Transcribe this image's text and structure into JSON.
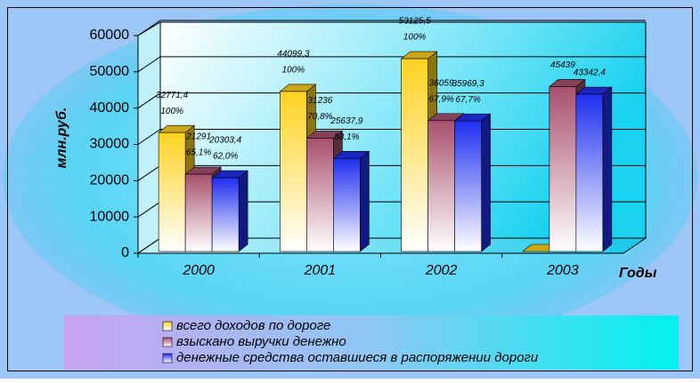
{
  "chart_data": {
    "type": "bar3d",
    "ylabel": "млн.руб.",
    "xlabel": "Годы",
    "categories": [
      "2000",
      "2001",
      "2002",
      "2003"
    ],
    "ylim": [
      0,
      60000
    ],
    "yticks": [
      0,
      10000,
      20000,
      30000,
      40000,
      50000,
      60000
    ],
    "grid": true,
    "series": [
      {
        "name": "всего доходов по дороге",
        "color": "#ffd21f",
        "values": [
          32771.4,
          44099.3,
          53125.5,
          0
        ],
        "value_labels": [
          "32771,4",
          "44099,3",
          "53125,5",
          null
        ],
        "share_labels": [
          "100%",
          "100%",
          "100%",
          null
        ]
      },
      {
        "name": "взыскано выручки денежно",
        "color": "#a8506e",
        "values": [
          21291,
          31236,
          36059,
          45439
        ],
        "value_labels": [
          "21291",
          "31236",
          "36059",
          "45439"
        ],
        "share_labels": [
          "65,1%",
          "70,8%",
          "67,9%",
          null
        ]
      },
      {
        "name": "денежные средства оставшиеся в распоряжении дороги",
        "color": "#1f2ff0",
        "values": [
          20303.4,
          25637.9,
          35969.3,
          43342.4
        ],
        "value_labels": [
          "20303,4",
          "25637,9",
          "35969,3",
          "43342,4"
        ],
        "share_labels": [
          "62,0%",
          "58,1%",
          "67,7%",
          null
        ]
      }
    ]
  }
}
